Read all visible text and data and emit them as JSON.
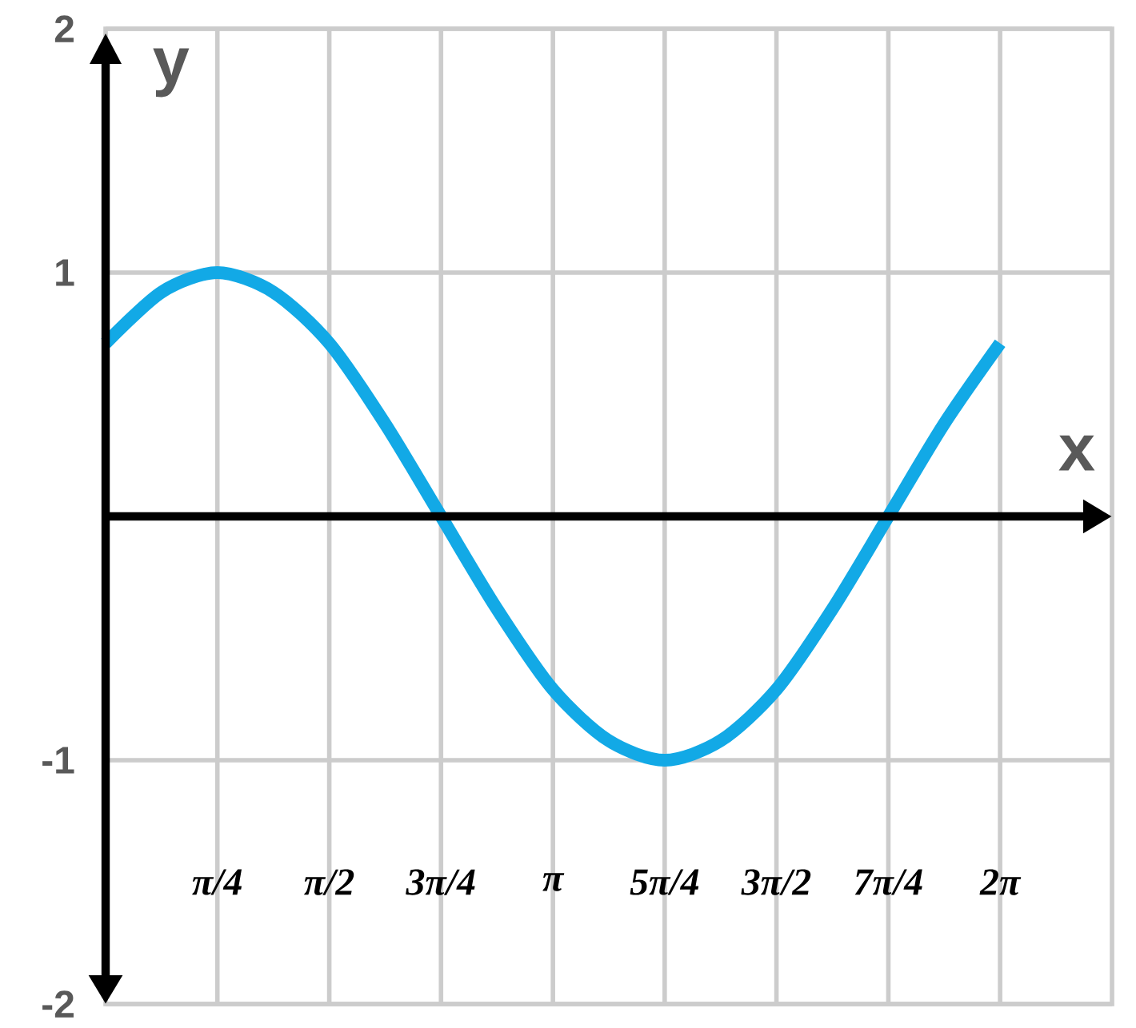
{
  "chart_data": {
    "type": "line",
    "xlabel": "x",
    "ylabel": "y",
    "x": [
      0,
      0.393,
      0.785,
      1.178,
      1.571,
      1.963,
      2.356,
      2.749,
      3.142,
      3.534,
      3.927,
      4.32,
      4.712,
      5.105,
      5.498,
      5.89,
      6.283
    ],
    "values": [
      0.71,
      0.92,
      1,
      0.92,
      0.71,
      0.38,
      0,
      -0.38,
      -0.71,
      -0.92,
      -1,
      -0.92,
      -0.71,
      -0.38,
      0,
      0.38,
      0.71
    ],
    "color": "#12a9e6",
    "xlim": [
      0,
      7.069
    ],
    "ylim": [
      -2,
      2
    ],
    "xticks": [
      {
        "value": 0.785,
        "label": "π/4"
      },
      {
        "value": 1.571,
        "label": "π/2"
      },
      {
        "value": 2.356,
        "label": "3π/4"
      },
      {
        "value": 3.142,
        "label": "π"
      },
      {
        "value": 3.927,
        "label": "5π/4"
      },
      {
        "value": 4.712,
        "label": "3π/2"
      },
      {
        "value": 5.498,
        "label": "7π/4"
      },
      {
        "value": 6.283,
        "label": "2π"
      }
    ],
    "yticks": [
      -2,
      -1,
      1,
      2
    ],
    "grid": true
  }
}
